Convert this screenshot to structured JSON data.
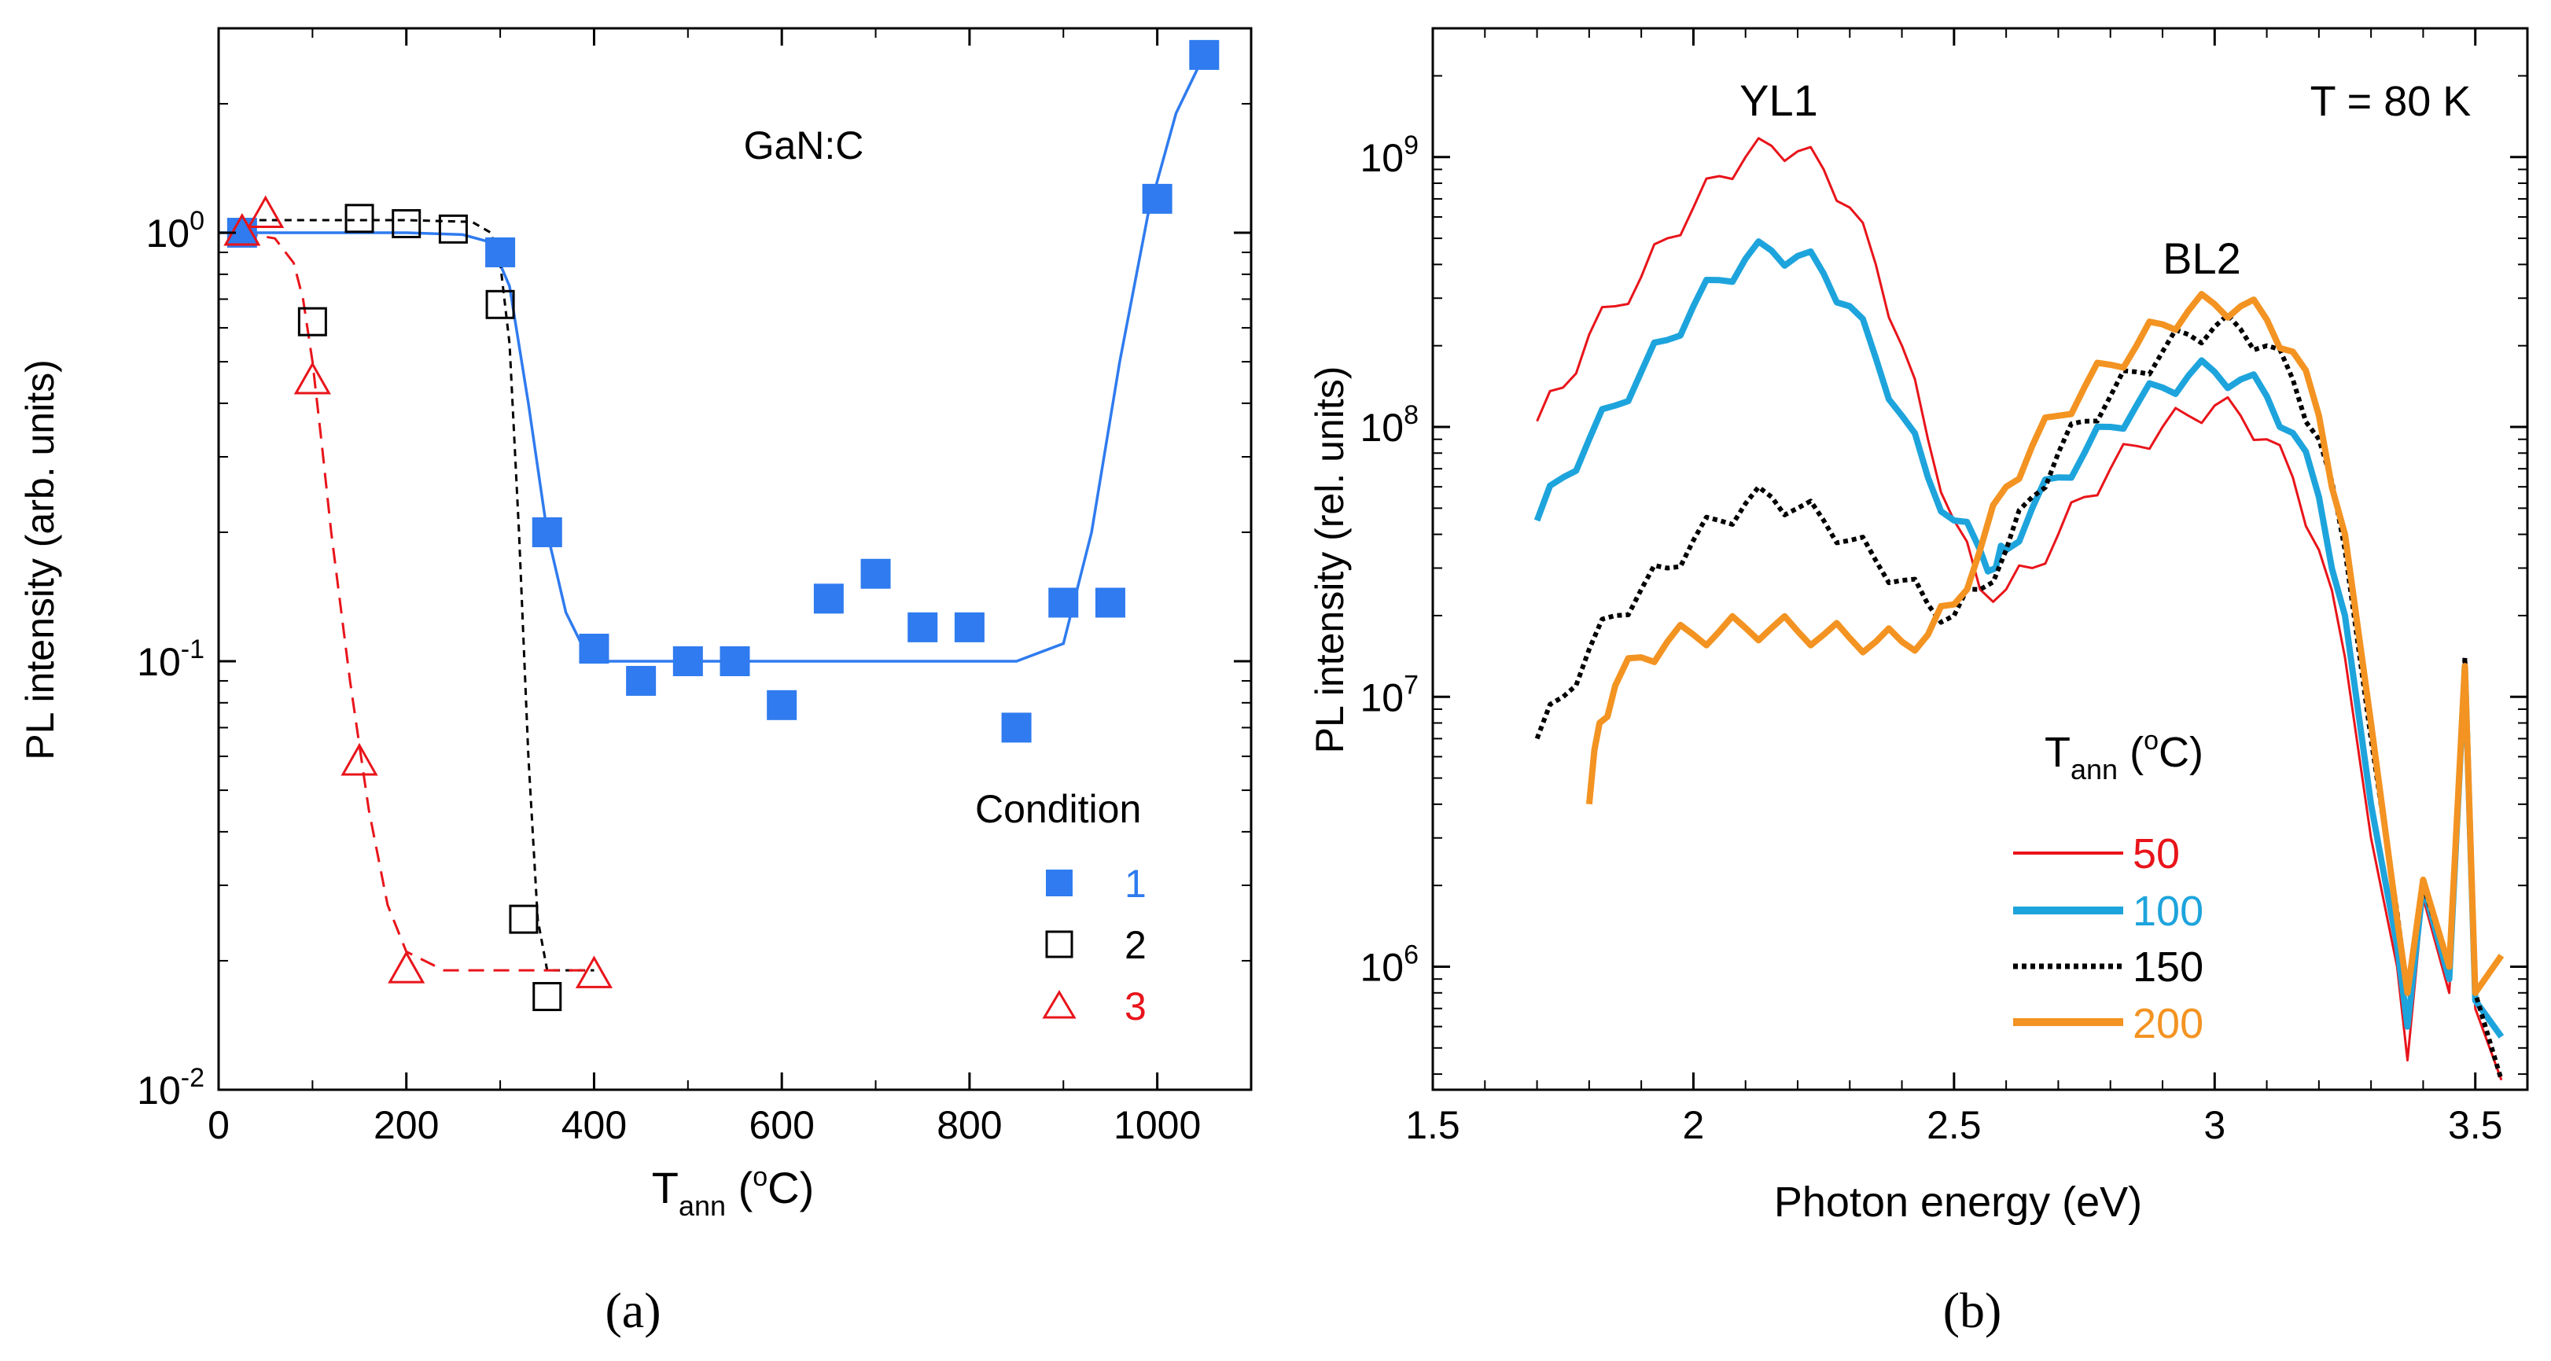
{
  "chart_data": [
    {
      "panel": "(a)",
      "type": "scatter",
      "annotation": "GaN:C",
      "xlabel_main": "T",
      "xlabel_sub": "ann",
      "xlabel_tail": " (°C)",
      "xlabel_tail_sup": "o",
      "xlabel_unit_letter": "C)",
      "ylabel": "PL intensity (arb. units)",
      "xlim": [
        0,
        1100
      ],
      "ylim": [
        0.01,
        3
      ],
      "yscale": "log",
      "x_ticks": [
        0,
        200,
        400,
        600,
        800,
        1000
      ],
      "x_tick_labels": [
        "0",
        "200",
        "400",
        "600",
        "800",
        "1000"
      ],
      "y_ticks": [
        {
          "value": 0.01,
          "base": "10",
          "exp": "-2"
        },
        {
          "value": 0.1,
          "base": "10",
          "exp": "-1"
        },
        {
          "value": 1,
          "base": "10",
          "exp": "0"
        }
      ],
      "legend_title": "Condition",
      "legend_position": "bottom-right",
      "series": [
        {
          "name": "1",
          "color": "#2f7bef",
          "marker": "filled-square",
          "x": [
            25,
            300,
            350,
            400,
            450,
            500,
            550,
            600,
            650,
            700,
            750,
            800,
            850,
            900,
            950,
            1000,
            1050
          ],
          "y": [
            1.0,
            0.9,
            0.2,
            0.107,
            0.09,
            0.1,
            0.1,
            0.079,
            0.14,
            0.16,
            0.12,
            0.12,
            0.07,
            0.137,
            0.137,
            1.2,
            2.6
          ],
          "fit_x": [
            0,
            100,
            200,
            260,
            290,
            310,
            330,
            350,
            370,
            390,
            410,
            450,
            600,
            750,
            850,
            900,
            930,
            960,
            990,
            1020,
            1050
          ],
          "fit_y": [
            1.0,
            1.0,
            1.0,
            0.99,
            0.95,
            0.75,
            0.4,
            0.2,
            0.13,
            0.106,
            0.1,
            0.1,
            0.1,
            0.1,
            0.1,
            0.11,
            0.2,
            0.5,
            1.1,
            1.9,
            2.6
          ],
          "fit_style": "solid"
        },
        {
          "name": "2",
          "color": "#000000",
          "marker": "open-square",
          "x": [
            100,
            150,
            200,
            250,
            300,
            325,
            350
          ],
          "y": [
            0.62,
            1.08,
            1.05,
            1.02,
            0.68,
            0.025,
            0.0165
          ],
          "fit_x": [
            30,
            200,
            270,
            290,
            300,
            310,
            320,
            330,
            340,
            350,
            400
          ],
          "fit_y": [
            1.07,
            1.07,
            1.06,
            1.0,
            0.85,
            0.55,
            0.2,
            0.06,
            0.025,
            0.019,
            0.019
          ],
          "fit_style": "dashed"
        },
        {
          "name": "3",
          "color": "#e8141a",
          "marker": "open-triangle",
          "x": [
            25,
            50,
            100,
            150,
            200,
            400
          ],
          "y": [
            1.0,
            1.1,
            0.45,
            0.058,
            0.019,
            0.0185
          ],
          "fit_x": [
            25,
            60,
            80,
            90,
            100,
            110,
            120,
            140,
            160,
            180,
            200,
            240,
            300,
            400
          ],
          "fit_y": [
            1.0,
            0.97,
            0.85,
            0.7,
            0.5,
            0.32,
            0.2,
            0.09,
            0.045,
            0.027,
            0.021,
            0.019,
            0.019,
            0.019
          ],
          "fit_style": "dashed"
        }
      ]
    },
    {
      "panel": "(b)",
      "type": "line",
      "xlabel": "Photon energy (eV)",
      "ylabel": "PL intensity (rel. units)",
      "xlim": [
        1.5,
        3.6
      ],
      "ylim": [
        350000,
        3000000000
      ],
      "yscale": "log",
      "x_ticks": [
        1.5,
        2,
        2.5,
        3,
        3.5
      ],
      "x_tick_labels": [
        "1.5",
        "2",
        "2.5",
        "3",
        "3.5"
      ],
      "y_ticks": [
        {
          "value": 1000000,
          "base": "10",
          "exp": "6"
        },
        {
          "value": 10000000,
          "base": "10",
          "exp": "7"
        },
        {
          "value": 100000000,
          "base": "10",
          "exp": "8"
        },
        {
          "value": 1000000000,
          "base": "10",
          "exp": "9"
        }
      ],
      "annotations": [
        "YL1",
        "BL2",
        "T = 80 K"
      ],
      "legend_title_main": "T",
      "legend_title_sub": "ann",
      "legend_title_tail_open": " (",
      "legend_title_sup": "o",
      "legend_title_close": "C)",
      "legend_position": "bottom-right",
      "series": [
        {
          "name": "50",
          "color": "#e8141a",
          "style": "thin",
          "x": [
            1.7,
            1.75,
            1.8,
            1.85,
            1.9,
            1.95,
            2.0,
            2.05,
            2.1,
            2.15,
            2.2,
            2.25,
            2.3,
            2.35,
            2.4,
            2.45,
            2.5,
            2.55,
            2.6,
            2.65,
            2.7,
            2.75,
            2.8,
            2.85,
            2.9,
            2.95,
            3.0,
            3.05,
            3.1,
            3.15,
            3.2,
            3.25,
            3.3,
            3.35,
            3.37,
            3.4,
            3.45,
            3.48,
            3.5,
            3.55
          ],
          "y": [
            105000000.0,
            140000000.0,
            220000000.0,
            280000000.0,
            360000000.0,
            500000000.0,
            650000000.0,
            850000000.0,
            1000000000.0,
            1100000000.0,
            1050000000.0,
            900000000.0,
            650000000.0,
            400000000.0,
            200000000.0,
            90000000.0,
            45000000.0,
            25000000.0,
            25000000.0,
            30000000.0,
            40000000.0,
            55000000.0,
            70000000.0,
            85000000.0,
            100000000.0,
            110000000.0,
            120000000.0,
            110000000.0,
            90000000.0,
            65000000.0,
            35000000.0,
            14000000.0,
            3000000.0,
            1000000.0,
            450000.0,
            1800000.0,
            800000.0,
            12000000.0,
            700000.0,
            380000.0
          ]
        },
        {
          "name": "100",
          "color": "#1ea4dc",
          "style": "thick",
          "x": [
            1.7,
            1.75,
            1.8,
            1.85,
            1.9,
            1.95,
            2.0,
            2.05,
            2.1,
            2.15,
            2.2,
            2.25,
            2.3,
            2.35,
            2.4,
            2.45,
            2.5,
            2.55,
            2.58,
            2.6,
            2.65,
            2.7,
            2.75,
            2.8,
            2.85,
            2.9,
            2.95,
            3.0,
            3.05,
            3.1,
            3.15,
            3.2,
            3.25,
            3.3,
            3.35,
            3.37,
            3.4,
            3.45,
            3.48,
            3.5,
            3.55
          ],
          "y": [
            45000000.0,
            65000000.0,
            90000000.0,
            120000000.0,
            160000000.0,
            210000000.0,
            280000000.0,
            350000000.0,
            420000000.0,
            450000000.0,
            430000000.0,
            370000000.0,
            280000000.0,
            180000000.0,
            110000000.0,
            65000000.0,
            45000000.0,
            35000000.0,
            30000000.0,
            35000000.0,
            50000000.0,
            65000000.0,
            80000000.0,
            100000000.0,
            120000000.0,
            140000000.0,
            155000000.0,
            160000000.0,
            150000000.0,
            130000000.0,
            95000000.0,
            55000000.0,
            20000000.0,
            4000000.0,
            1200000.0,
            600000.0,
            2000000.0,
            900000.0,
            13000000.0,
            750000.0,
            550000.0
          ]
        },
        {
          "name": "150",
          "color": "#000000",
          "style": "dotted",
          "x": [
            1.7,
            1.75,
            1.8,
            1.85,
            1.9,
            1.95,
            2.0,
            2.05,
            2.1,
            2.15,
            2.2,
            2.25,
            2.3,
            2.35,
            2.4,
            2.45,
            2.5,
            2.55,
            2.6,
            2.65,
            2.7,
            2.75,
            2.8,
            2.85,
            2.9,
            2.95,
            3.0,
            3.05,
            3.1,
            3.15,
            3.2,
            3.25,
            3.3,
            3.35,
            3.37,
            3.4,
            3.45,
            3.48,
            3.5,
            3.55
          ],
          "y": [
            7000000.0,
            10000000.0,
            15000000.0,
            20000000.0,
            25000000.0,
            30000000.0,
            38000000.0,
            45000000.0,
            52000000.0,
            55000000.0,
            50000000.0,
            45000000.0,
            38000000.0,
            32000000.0,
            27000000.0,
            22000000.0,
            20000000.0,
            25000000.0,
            35000000.0,
            55000000.0,
            80000000.0,
            105000000.0,
            130000000.0,
            160000000.0,
            190000000.0,
            220000000.0,
            235000000.0,
            230000000.0,
            200000000.0,
            150000000.0,
            90000000.0,
            35000000.0,
            7000000.0,
            1600000.0,
            800000.0,
            2000000.0,
            1000000.0,
            14000000.0,
            800000.0,
            380000.0
          ]
        },
        {
          "name": "200",
          "color": "#f39322",
          "style": "thick",
          "x": [
            1.8,
            1.82,
            1.85,
            1.9,
            1.95,
            2.0,
            2.05,
            2.1,
            2.15,
            2.2,
            2.25,
            2.3,
            2.35,
            2.4,
            2.45,
            2.5,
            2.55,
            2.6,
            2.65,
            2.7,
            2.75,
            2.8,
            2.85,
            2.9,
            2.95,
            3.0,
            3.05,
            3.1,
            3.15,
            3.2,
            3.25,
            3.3,
            3.35,
            3.37,
            3.4,
            3.45,
            3.48,
            3.5,
            3.55
          ],
          "y": [
            4000000.0,
            8000000.0,
            11000000.0,
            14000000.0,
            16000000.0,
            17000000.0,
            17500000.0,
            18000000.0,
            18000000.0,
            17500000.0,
            17000000.0,
            16500000.0,
            16000000.0,
            16000000.0,
            17000000.0,
            22000000.0,
            35000000.0,
            60000000.0,
            85000000.0,
            110000000.0,
            140000000.0,
            170000000.0,
            200000000.0,
            240000000.0,
            270000000.0,
            285000000.0,
            280000000.0,
            250000000.0,
            190000000.0,
            110000000.0,
            40000000.0,
            8000000.0,
            1500000.0,
            800000.0,
            2100000.0,
            1000000.0,
            13000000.0,
            800000.0,
            1100000.0
          ]
        }
      ]
    }
  ],
  "captions": [
    "(a)",
    "(b)"
  ]
}
